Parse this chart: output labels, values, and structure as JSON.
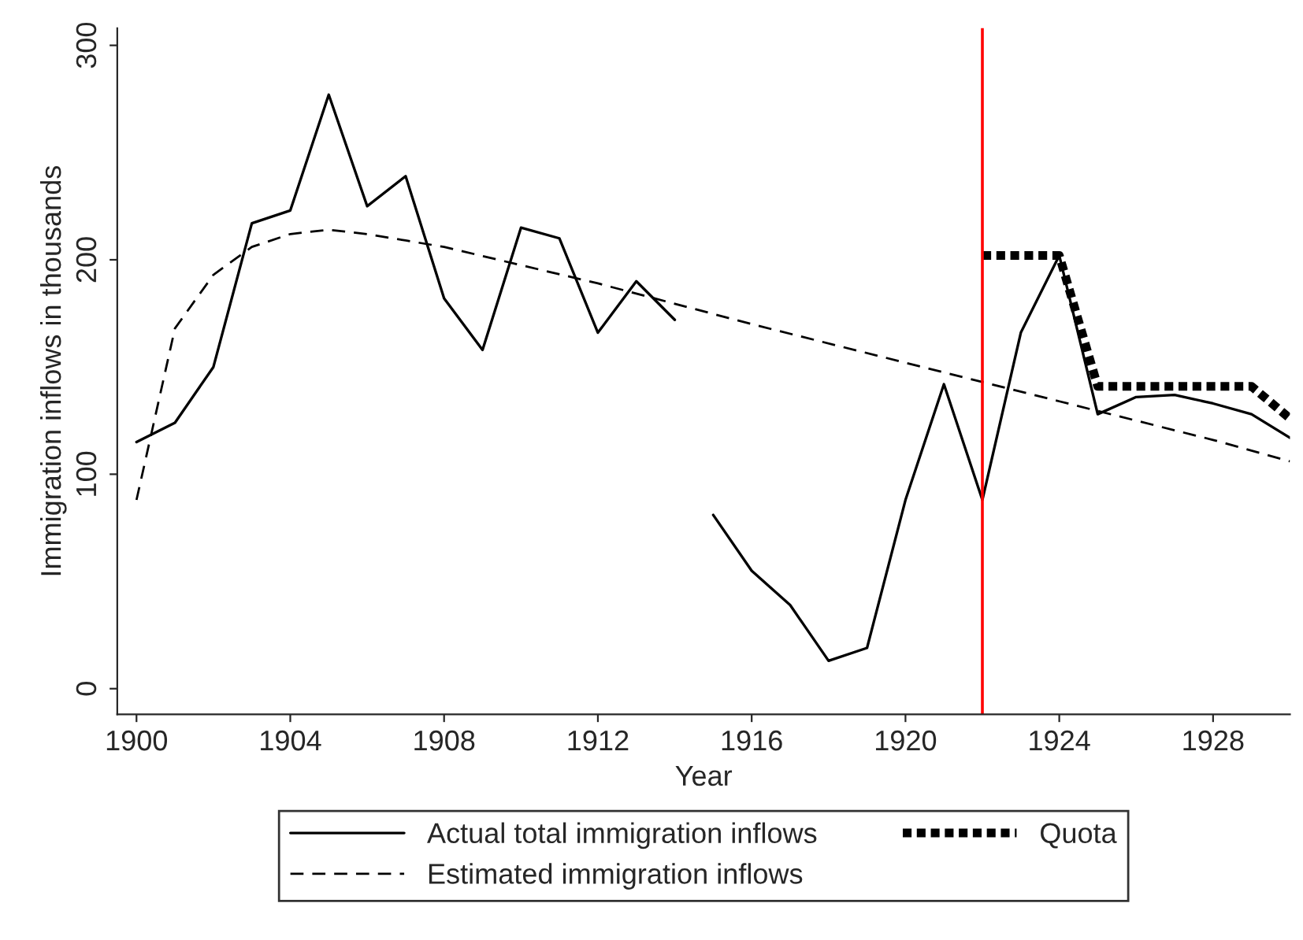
{
  "chart_data": {
    "type": "line",
    "xlabel": "Year",
    "ylabel": "Immigration inflows in thousands",
    "xlim": [
      1899.5,
      1930
    ],
    "ylim": [
      -12,
      308
    ],
    "xticks": [
      1900,
      1904,
      1908,
      1912,
      1916,
      1920,
      1924,
      1928
    ],
    "yticks": [
      0,
      100,
      200,
      300
    ],
    "grid": false,
    "legend": "bottom",
    "marker": "none",
    "ref_lines": [
      {
        "axis": "x",
        "value": 1922,
        "color": "#ff0000",
        "line_style": "solid"
      }
    ],
    "series": [
      {
        "name": "Actual total immigration inflows",
        "color": "#000000",
        "line_style": "solid",
        "x": [
          1900,
          1901,
          1902,
          1903,
          1904,
          1905,
          1906,
          1907,
          1908,
          1909,
          1910,
          1911,
          1912,
          1913,
          1914,
          1914.5,
          1915,
          1916,
          1917,
          1918,
          1919,
          1920,
          1921,
          1922,
          1923,
          1924,
          1925,
          1926,
          1927,
          1928,
          1929,
          1930
        ],
        "values": [
          115,
          124,
          150,
          217,
          223,
          277,
          225,
          239,
          182,
          158,
          215,
          210,
          166,
          190,
          172,
          null,
          81,
          55,
          39,
          13,
          19,
          88,
          142,
          88,
          166,
          202,
          128,
          136,
          137,
          133,
          128,
          117
        ]
      },
      {
        "name": "Estimated immigration inflows",
        "color": "#000000",
        "line_style": "dashed",
        "x": [
          1900,
          1901,
          1902,
          1903,
          1904,
          1905,
          1906,
          1907,
          1908,
          1912,
          1916,
          1920,
          1924,
          1928,
          1930
        ],
        "values": [
          88,
          168,
          193,
          206,
          212,
          214,
          212,
          209,
          206,
          189,
          170,
          152,
          134,
          116,
          106
        ]
      },
      {
        "name": "Quota",
        "color": "#000000",
        "line_style": "dotted",
        "x": [
          1922,
          1924,
          1925,
          1929,
          1930
        ],
        "values": [
          202,
          202,
          141,
          141,
          126
        ]
      }
    ]
  }
}
